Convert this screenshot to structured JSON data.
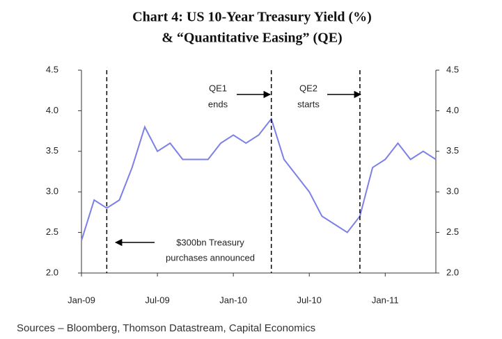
{
  "chart_data": {
    "type": "line",
    "title": "Chart 4: US 10-Year Treasury Yield (%)",
    "subtitle": "& “Quantitative Easing” (QE)",
    "source": "Sources – Bloomberg, Thomson Datastream, Capital Economics",
    "x": [
      "2009-01",
      "2009-02",
      "2009-03",
      "2009-04",
      "2009-05",
      "2009-06",
      "2009-07",
      "2009-08",
      "2009-09",
      "2009-10",
      "2009-11",
      "2009-12",
      "2010-01",
      "2010-02",
      "2010-03",
      "2010-04",
      "2010-05",
      "2010-06",
      "2010-07",
      "2010-08",
      "2010-09",
      "2010-10",
      "2010-11",
      "2010-12",
      "2011-01",
      "2011-02",
      "2011-03",
      "2011-04",
      "2011-05"
    ],
    "series": [
      {
        "name": "US 10-Year Treasury Yield",
        "color": "#7d7fe8",
        "values": [
          2.4,
          2.9,
          2.8,
          2.9,
          3.3,
          3.8,
          3.5,
          3.6,
          3.4,
          3.4,
          3.4,
          3.6,
          3.7,
          3.6,
          3.7,
          3.9,
          3.4,
          3.2,
          3.0,
          2.7,
          2.6,
          2.5,
          2.7,
          3.3,
          3.4,
          3.6,
          3.4,
          3.5,
          3.4
        ]
      }
    ],
    "xlim": [
      "2009-01",
      "2011-05"
    ],
    "xticks": [
      {
        "value": "2009-01",
        "label": "Jan-09"
      },
      {
        "value": "2009-07",
        "label": "Jul-09"
      },
      {
        "value": "2010-01",
        "label": "Jan-10"
      },
      {
        "value": "2010-07",
        "label": "Jul-10"
      },
      {
        "value": "2011-01",
        "label": "Jan-11"
      }
    ],
    "ylim": [
      2,
      4.5
    ],
    "yticks": [
      {
        "value": 2,
        "label": "2.0"
      },
      2.5,
      {
        "value": 3,
        "label": "3.0"
      },
      3.5,
      {
        "value": 4,
        "label": "4.0"
      },
      4.5
    ],
    "y2lim": [
      2,
      4.5
    ],
    "y2ticks": [
      {
        "value": 2,
        "label": "2.0"
      },
      2.5,
      {
        "value": 3,
        "label": "3.0"
      },
      3.5,
      {
        "value": 4,
        "label": "4.0"
      },
      4.5
    ],
    "events": [
      {
        "x": "2009-03",
        "text": [
          "$300bn  Treasury",
          "purchases announced"
        ]
      },
      {
        "x": "2010-04",
        "text": [
          "QE1",
          "ends"
        ]
      },
      {
        "x": "2010-11",
        "text": [
          "QE2",
          "starts"
        ]
      }
    ]
  }
}
